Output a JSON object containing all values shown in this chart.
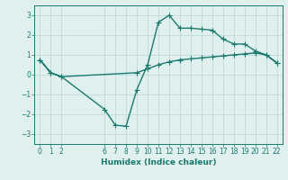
{
  "xlabel": "Humidex (Indice chaleur)",
  "xlim": [
    -0.5,
    22.5
  ],
  "ylim": [
    -3.5,
    3.5
  ],
  "xticks": [
    0,
    1,
    2,
    6,
    7,
    8,
    9,
    10,
    11,
    12,
    13,
    14,
    15,
    16,
    17,
    18,
    19,
    20,
    21,
    22
  ],
  "yticks": [
    -3,
    -2,
    -1,
    0,
    1,
    2,
    3
  ],
  "line_color": "#1a7a6e",
  "markersize": 4,
  "linewidth": 1.0,
  "bg_color": "#dff0ef",
  "grid_color": "#b8d8d4",
  "loop_x": [
    0,
    1,
    2,
    6,
    7,
    8,
    9,
    10,
    11,
    12,
    13,
    14,
    15,
    16,
    17,
    18,
    19,
    20,
    21,
    22,
    22,
    21,
    20,
    19,
    18,
    17,
    16,
    15,
    14,
    13,
    12,
    11,
    10,
    9,
    2,
    1,
    0
  ],
  "loop_y": [
    0.75,
    0.1,
    -0.1,
    -1.75,
    -2.55,
    -2.6,
    -0.75,
    0.5,
    2.65,
    3.0,
    2.35,
    2.35,
    2.3,
    2.25,
    1.8,
    1.55,
    1.55,
    1.2,
    1.0,
    0.6,
    0.6,
    1.0,
    1.1,
    1.05,
    1.0,
    0.95,
    0.9,
    0.85,
    0.8,
    0.75,
    0.65,
    0.5,
    0.3,
    0.1,
    -0.1,
    0.1,
    0.75
  ]
}
